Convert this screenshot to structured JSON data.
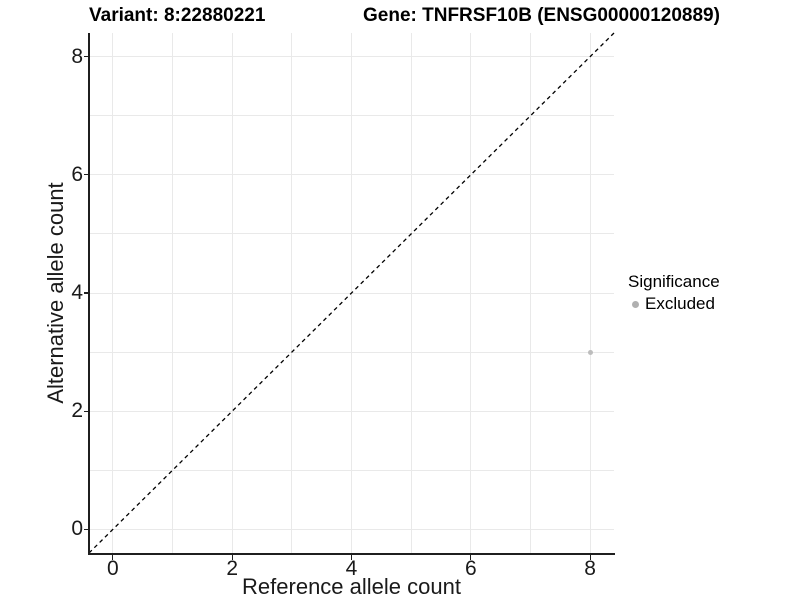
{
  "chart_data": {
    "type": "scatter",
    "title_left": "Variant: 8:22880221",
    "title_right": "Gene: TNFRSF10B (ENSG00000120889)",
    "xlabel": "Reference allele count",
    "ylabel": "Alternative allele count",
    "xlim": [
      -0.4,
      8.4
    ],
    "ylim": [
      -0.4,
      8.4
    ],
    "xticks": [
      0,
      2,
      4,
      6,
      8
    ],
    "yticks": [
      0,
      2,
      4,
      6,
      8
    ],
    "grid_on": true,
    "grid_step": 1,
    "grid_range": [
      0,
      8
    ],
    "grid_color": "#e9e9e9",
    "axis_color": "#1f1f1f",
    "identity_line": {
      "style": "dashed",
      "color": "#000000",
      "x1": -0.4,
      "y1": -0.4,
      "x2": 8.4,
      "y2": 8.4
    },
    "series": [
      {
        "name": "Excluded",
        "color": "#bdbdbd",
        "point_diameter": 5,
        "points": [
          {
            "x": 8,
            "y": 3
          }
        ]
      }
    ],
    "legend": {
      "title": "Significance",
      "position": "right",
      "items": [
        {
          "label": "Excluded",
          "color": "#b0b0b0",
          "icon": "point-icon"
        }
      ]
    }
  }
}
